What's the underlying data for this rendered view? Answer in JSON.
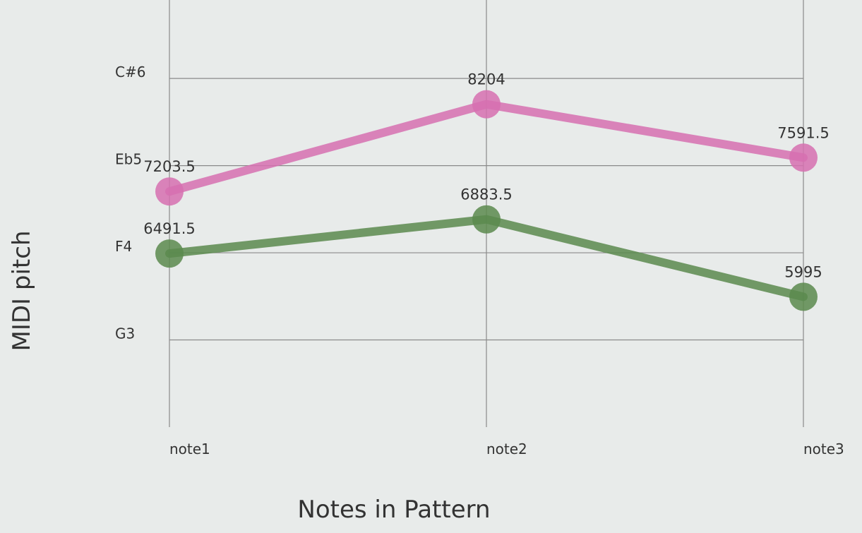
{
  "chart_data": {
    "type": "line",
    "title": "",
    "xlabel": "Notes in Pattern",
    "ylabel": "MIDI pitch",
    "categories": [
      "note1",
      "note2",
      "note3"
    ],
    "y_ticks": [
      {
        "label": "G3",
        "value": 5500
      },
      {
        "label": "F4",
        "value": 6500
      },
      {
        "label": "Eb5",
        "value": 7500
      },
      {
        "label": "C#6",
        "value": 8500
      }
    ],
    "ylim": [
      4500,
      9400
    ],
    "grid": true,
    "series": [
      {
        "color": "#d670b0",
        "values": [
          7203.5,
          8204,
          7591.5
        ],
        "labels": [
          "7203.5",
          "8204",
          "7591.5"
        ]
      },
      {
        "color": "#5a8a4e",
        "values": [
          6491.5,
          6883.5,
          5995
        ],
        "labels": [
          "6491.5",
          "6883.5",
          "5995"
        ]
      }
    ]
  }
}
